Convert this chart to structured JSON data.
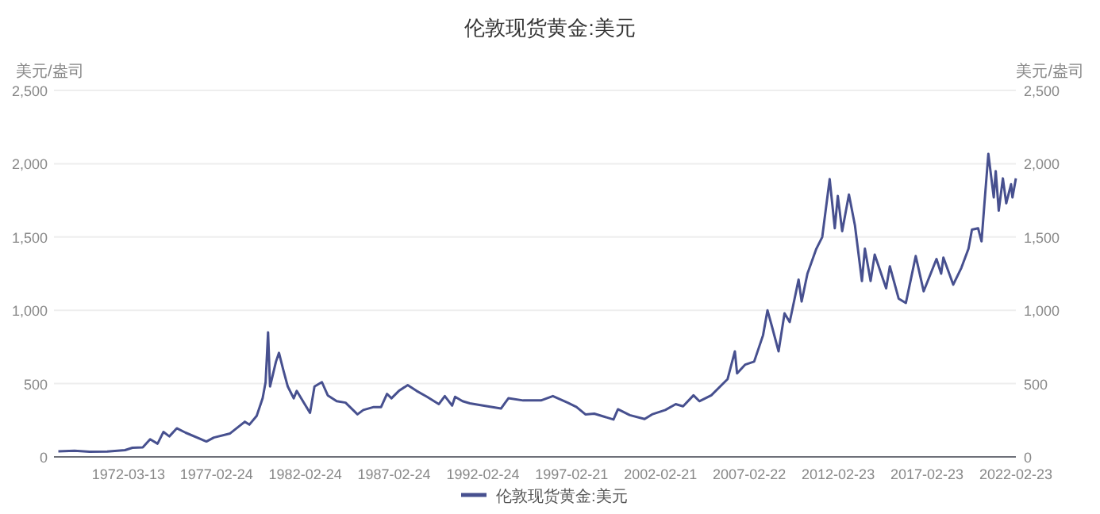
{
  "chart_data": {
    "type": "line",
    "title": "伦敦现货黄金:美元",
    "ylabel": "美元/盎司",
    "y2label": "美元/盎司",
    "xlim": [
      "1968-01-02",
      "2022-02-23"
    ],
    "xticks": [
      "1972-03-13",
      "1977-02-24",
      "1982-02-24",
      "1987-02-24",
      "1992-02-24",
      "1997-02-21",
      "2002-02-21",
      "2007-02-22",
      "2012-02-23",
      "2017-02-23",
      "2022-02-23"
    ],
    "ylim": [
      0,
      2500
    ],
    "yticks": [
      0,
      500,
      {
        "value": 1000,
        "label": "1,000"
      },
      {
        "value": 1500,
        "label": "1,500"
      },
      {
        "value": 2000,
        "label": "2,000"
      },
      {
        "value": 2500,
        "label": "2,500"
      }
    ],
    "y2lim": [
      0,
      2500
    ],
    "y2ticks": [
      0,
      500,
      {
        "value": 1000,
        "label": "1,000"
      },
      {
        "value": 1500,
        "label": "1,500"
      },
      {
        "value": 2000,
        "label": "2,000"
      },
      {
        "value": 2500,
        "label": "2,500"
      }
    ],
    "grid": "y",
    "legend": "bottom",
    "x": [
      "1968-04-01",
      "1969-03-01",
      "1970-01-01",
      "1971-01-01",
      "1972-01-01",
      "1972-06-01",
      "1973-01-01",
      "1973-06-01",
      "1973-11-01",
      "1974-03-01",
      "1974-07-01",
      "1974-12-01",
      "1975-06-01",
      "1976-08-01",
      "1977-01-01",
      "1977-12-01",
      "1978-10-01",
      "1979-01-01",
      "1979-06-01",
      "1979-10-01",
      "1979-12-01",
      "1980-01-21",
      "1980-03-01",
      "1980-07-01",
      "1980-09-01",
      "1980-12-01",
      "1981-03-01",
      "1981-07-01",
      "1981-09-01",
      "1982-06-01",
      "1982-09-01",
      "1983-02-01",
      "1983-06-01",
      "1983-12-01",
      "1984-06-01",
      "1985-02-01",
      "1985-06-01",
      "1986-01-01",
      "1986-06-01",
      "1986-10-01",
      "1987-01-01",
      "1987-06-01",
      "1987-12-01",
      "1988-06-01",
      "1989-01-01",
      "1989-09-01",
      "1990-01-01",
      "1990-06-01",
      "1990-08-01",
      "1991-01-01",
      "1991-06-01",
      "1992-06-01",
      "1993-03-01",
      "1993-08-01",
      "1994-06-01",
      "1995-06-01",
      "1996-02-01",
      "1996-12-01",
      "1997-06-01",
      "1997-12-01",
      "1998-06-01",
      "1999-07-01",
      "1999-10-01",
      "2000-06-01",
      "2001-04-01",
      "2001-09-01",
      "2002-06-01",
      "2003-01-01",
      "2003-06-01",
      "2004-01-01",
      "2004-05-01",
      "2005-01-01",
      "2005-12-01",
      "2006-05-01",
      "2006-06-15",
      "2006-12-01",
      "2007-06-01",
      "2007-12-01",
      "2008-03-01",
      "2008-06-01",
      "2008-10-15",
      "2009-02-15",
      "2009-06-01",
      "2009-12-01",
      "2010-02-01",
      "2010-06-01",
      "2010-12-01",
      "2011-04-01",
      "2011-09-01",
      "2011-12-15",
      "2012-02-15",
      "2012-05-15",
      "2012-10-01",
      "2013-02-01",
      "2013-06-25",
      "2013-08-25",
      "2013-12-20",
      "2014-03-15",
      "2014-11-05",
      "2015-01-20",
      "2015-07-20",
      "2015-12-15",
      "2016-07-05",
      "2016-12-15",
      "2017-09-05",
      "2017-12-10",
      "2018-01-25",
      "2018-08-15",
      "2019-01-30",
      "2019-06-25",
      "2019-09-04",
      "2020-01-08",
      "2020-03-19",
      "2020-05-18",
      "2020-08-06",
      "2020-11-25",
      "2021-01-05",
      "2021-03-08",
      "2021-06-01",
      "2021-08-09",
      "2021-11-16",
      "2021-12-15",
      "2022-02-23"
    ],
    "series": [
      {
        "name": "伦敦现货黄金:美元",
        "color": "#47508f",
        "values": [
          38,
          42,
          35,
          37,
          46,
          62,
          65,
          120,
          90,
          170,
          140,
          195,
          165,
          105,
          132,
          160,
          240,
          220,
          280,
          400,
          510,
          850,
          480,
          650,
          710,
          590,
          480,
          400,
          450,
          300,
          480,
          510,
          420,
          380,
          370,
          290,
          320,
          340,
          340,
          430,
          400,
          450,
          490,
          450,
          410,
          360,
          415,
          350,
          410,
          380,
          365,
          345,
          330,
          400,
          385,
          385,
          415,
          370,
          340,
          290,
          295,
          255,
          325,
          285,
          258,
          290,
          320,
          360,
          345,
          420,
          380,
          420,
          530,
          720,
          570,
          630,
          650,
          830,
          1000,
          890,
          720,
          980,
          920,
          1210,
          1060,
          1250,
          1420,
          1500,
          1895,
          1560,
          1780,
          1540,
          1790,
          1580,
          1200,
          1420,
          1200,
          1380,
          1150,
          1300,
          1080,
          1050,
          1370,
          1130,
          1350,
          1250,
          1360,
          1175,
          1290,
          1420,
          1550,
          1560,
          1470,
          1730,
          2067,
          1770,
          1950,
          1680,
          1900,
          1730,
          1860,
          1770,
          1900
        ]
      }
    ]
  }
}
